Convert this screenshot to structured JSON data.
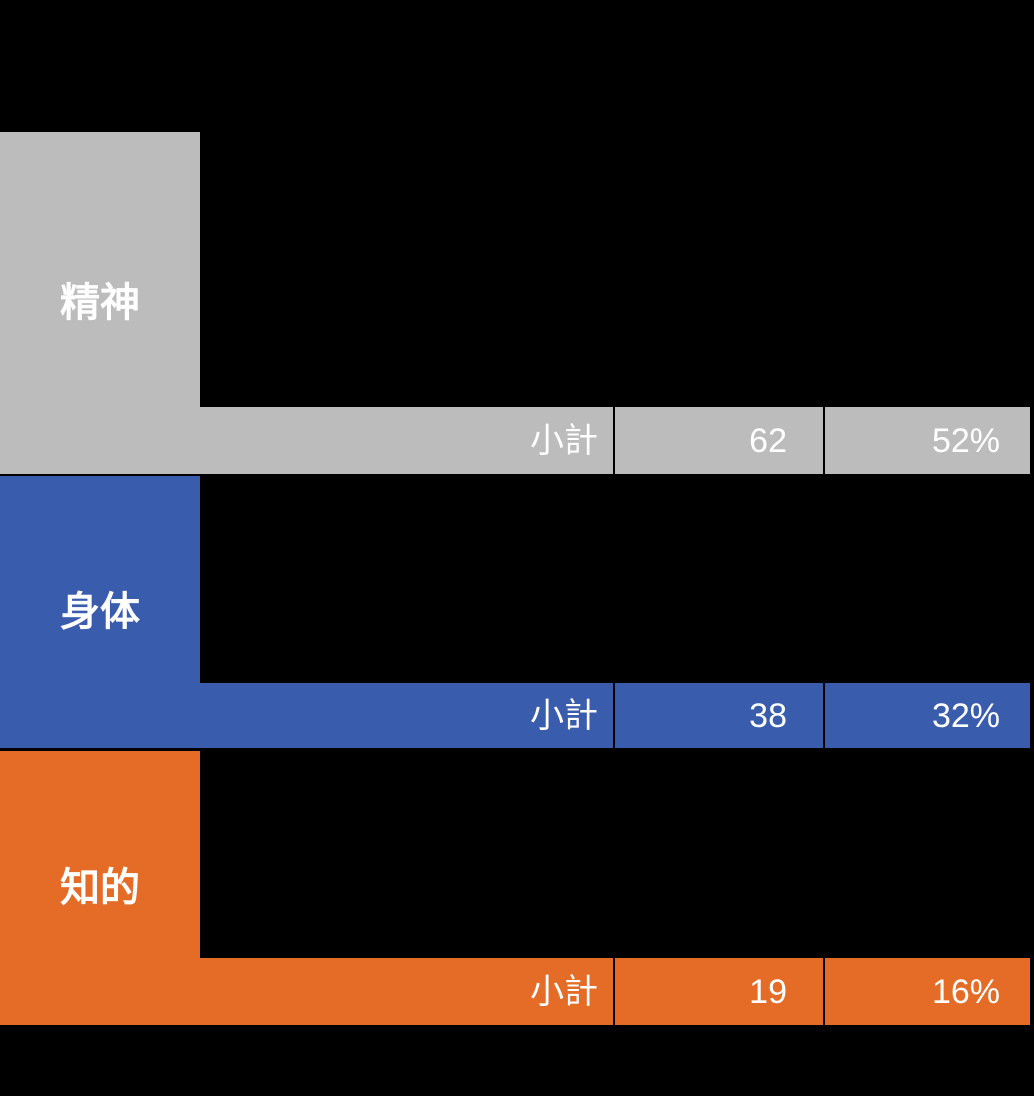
{
  "page": {
    "background_color": "#000000",
    "gridline_color": "#000000",
    "text_color": "#FFFFFF"
  },
  "table": {
    "subtotal_label": "小計",
    "groups": [
      {
        "label": "精神",
        "color": "#BCBCBC",
        "count": "62",
        "percent": "52%"
      },
      {
        "label": "身体",
        "color": "#3A5CAD",
        "count": "38",
        "percent": "32%"
      },
      {
        "label": "知的",
        "color": "#E46C26",
        "count": "19",
        "percent": "16%"
      }
    ]
  }
}
